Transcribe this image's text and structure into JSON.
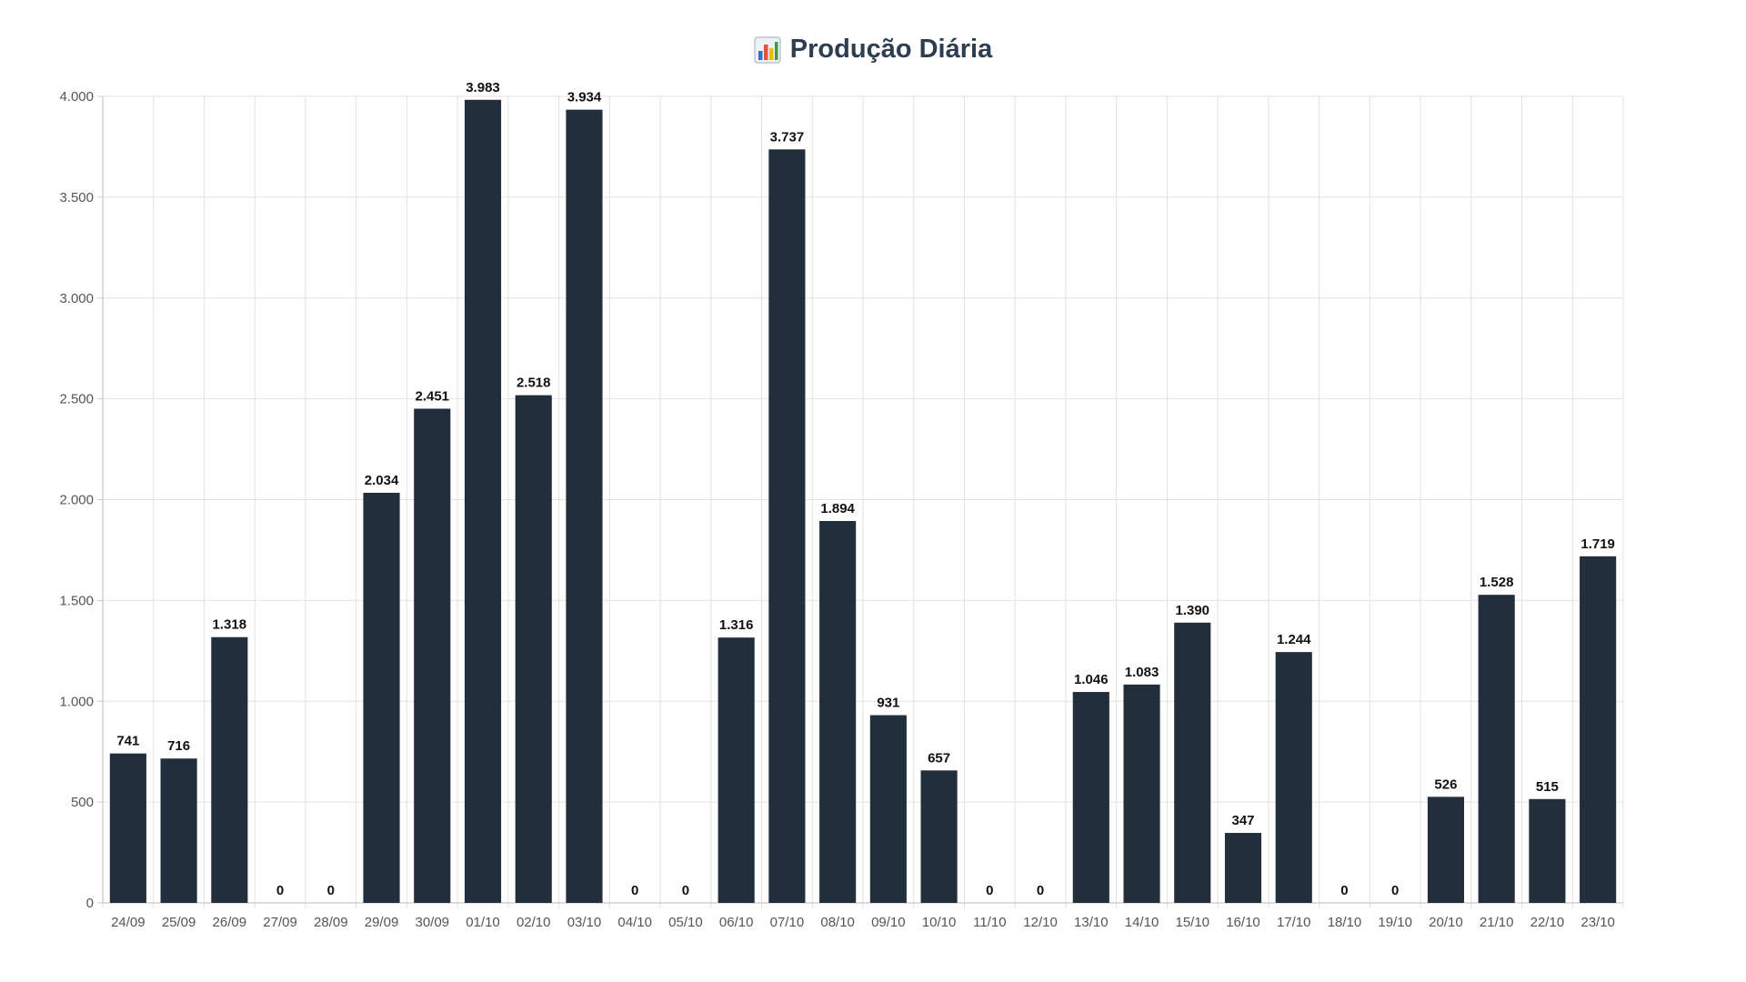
{
  "chart_data": {
    "type": "bar",
    "title": "Produção Diária",
    "title_icon": "bar-chart-icon",
    "xlabel": "",
    "ylabel": "",
    "ylim": [
      0,
      4000
    ],
    "yticks": [
      0,
      500,
      1000,
      1500,
      2000,
      2500,
      3000,
      3500,
      4000
    ],
    "grid": true,
    "bar_color": "#222e3c",
    "categories": [
      "24/09",
      "25/09",
      "26/09",
      "27/09",
      "28/09",
      "29/09",
      "30/09",
      "01/10",
      "02/10",
      "03/10",
      "04/10",
      "05/10",
      "06/10",
      "07/10",
      "08/10",
      "09/10",
      "10/10",
      "11/10",
      "12/10",
      "13/10",
      "14/10",
      "15/10",
      "16/10",
      "17/10",
      "18/10",
      "19/10",
      "20/10",
      "21/10",
      "22/10",
      "23/10"
    ],
    "values": [
      741,
      716,
      1318,
      0,
      0,
      2034,
      2451,
      3983,
      2518,
      3934,
      0,
      0,
      1316,
      3737,
      1894,
      931,
      657,
      0,
      0,
      1046,
      1083,
      1390,
      347,
      1244,
      0,
      0,
      526,
      1528,
      515,
      1719
    ]
  }
}
